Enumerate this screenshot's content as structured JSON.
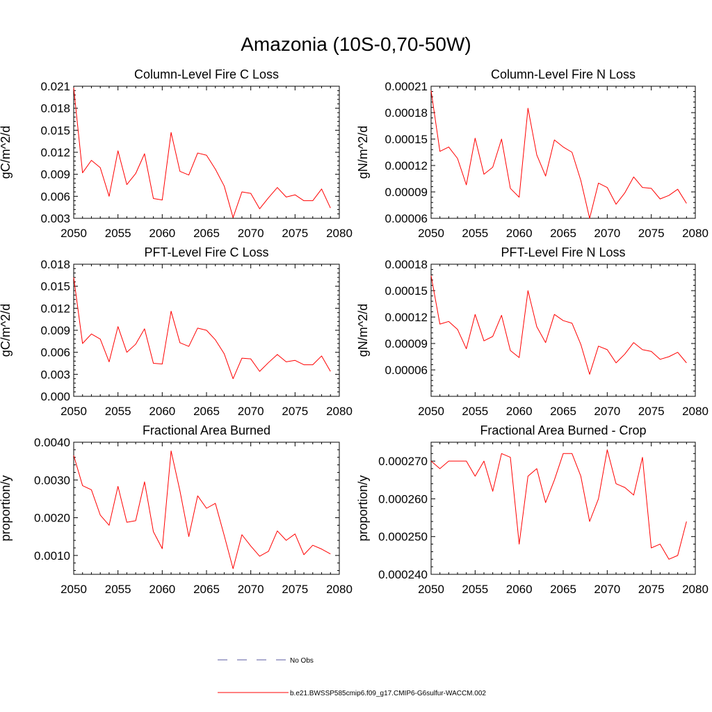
{
  "figure": {
    "title": "Amazonia (10S-0,70-50W)"
  },
  "legend": {
    "entries": [
      {
        "label": "No Obs",
        "color": "#5a5aa0",
        "style": "dashed"
      },
      {
        "label": "b.e21.BWSSP585cmip6.f09_g17.CMIP6-G6sulfur-WACCM.002",
        "color": "#ff0000",
        "style": "solid"
      }
    ]
  },
  "chart_data": [
    {
      "type": "line",
      "title": "Column-Level Fire C Loss",
      "ylabel": "gC/m^2/d",
      "xlim": [
        2050,
        2080
      ],
      "ylim": [
        0.003,
        0.021
      ],
      "xticks": [
        2050,
        2055,
        2060,
        2065,
        2070,
        2075,
        2080
      ],
      "yticks": [
        "0.003",
        "0.006",
        "0.009",
        "0.012",
        "0.015",
        "0.018",
        "0.021"
      ],
      "x": [
        2050,
        2051,
        2052,
        2053,
        2054,
        2055,
        2056,
        2057,
        2058,
        2059,
        2060,
        2061,
        2062,
        2063,
        2064,
        2065,
        2066,
        2067,
        2068,
        2069,
        2070,
        2071,
        2072,
        2073,
        2074,
        2075,
        2076,
        2077,
        2078,
        2079
      ],
      "series": [
        {
          "color": "#ff0000",
          "values": [
            0.0208,
            0.0092,
            0.0109,
            0.0099,
            0.006,
            0.0122,
            0.0076,
            0.0091,
            0.0118,
            0.0057,
            0.0055,
            0.0147,
            0.0094,
            0.0089,
            0.0119,
            0.0116,
            0.0097,
            0.0074,
            0.0031,
            0.0066,
            0.0064,
            0.0043,
            0.0058,
            0.0072,
            0.0059,
            0.0062,
            0.0054,
            0.0054,
            0.007,
            0.0044
          ]
        }
      ]
    },
    {
      "type": "line",
      "title": "Column-Level Fire N Loss",
      "ylabel": "gN/m^2/d",
      "xlim": [
        2050,
        2080
      ],
      "ylim": [
        6e-05,
        0.00021
      ],
      "xticks": [
        2050,
        2055,
        2060,
        2065,
        2070,
        2075,
        2080
      ],
      "yticks": [
        "0.00006",
        "0.00009",
        "0.00012",
        "0.00015",
        "0.00018",
        "0.00021"
      ],
      "x": [
        2050,
        2051,
        2052,
        2053,
        2054,
        2055,
        2056,
        2057,
        2058,
        2059,
        2060,
        2061,
        2062,
        2063,
        2064,
        2065,
        2066,
        2067,
        2068,
        2069,
        2070,
        2071,
        2072,
        2073,
        2074,
        2075,
        2076,
        2077,
        2078,
        2079
      ],
      "series": [
        {
          "color": "#ff0000",
          "values": [
            0.000205,
            0.000136,
            0.000141,
            0.000128,
            9.8e-05,
            0.000151,
            0.00011,
            0.000118,
            0.00015,
            9.4e-05,
            8.4e-05,
            0.000185,
            0.000132,
            0.000108,
            0.000149,
            0.000141,
            0.000135,
            0.000103,
            6e-05,
            0.0001,
            9.5e-05,
            7.6e-05,
            8.9e-05,
            0.000107,
            9.5e-05,
            9.4e-05,
            8.2e-05,
            8.6e-05,
            9.3e-05,
            7.7e-05
          ]
        }
      ]
    },
    {
      "type": "line",
      "title": "PFT-Level Fire C Loss",
      "ylabel": "gC/m^2/d",
      "xlim": [
        2050,
        2080
      ],
      "ylim": [
        0,
        0.018
      ],
      "xticks": [
        2050,
        2055,
        2060,
        2065,
        2070,
        2075,
        2080
      ],
      "yticks": [
        "0.000",
        "0.003",
        "0.006",
        "0.009",
        "0.012",
        "0.015",
        "0.018"
      ],
      "x": [
        2050,
        2051,
        2052,
        2053,
        2054,
        2055,
        2056,
        2057,
        2058,
        2059,
        2060,
        2061,
        2062,
        2063,
        2064,
        2065,
        2066,
        2067,
        2068,
        2069,
        2070,
        2071,
        2072,
        2073,
        2074,
        2075,
        2076,
        2077,
        2078,
        2079
      ],
      "series": [
        {
          "color": "#ff0000",
          "values": [
            0.0162,
            0.0072,
            0.0085,
            0.0078,
            0.0047,
            0.0095,
            0.006,
            0.0071,
            0.0092,
            0.0045,
            0.0044,
            0.0116,
            0.0073,
            0.0068,
            0.0093,
            0.009,
            0.0077,
            0.0058,
            0.0024,
            0.0052,
            0.0051,
            0.0034,
            0.0046,
            0.0057,
            0.0047,
            0.0049,
            0.0043,
            0.0043,
            0.0055,
            0.0034
          ]
        }
      ]
    },
    {
      "type": "line",
      "title": "PFT-Level Fire N Loss",
      "ylabel": "gN/m^2/d",
      "xlim": [
        2050,
        2080
      ],
      "ylim": [
        3e-05,
        0.00018
      ],
      "xticks": [
        2050,
        2055,
        2060,
        2065,
        2070,
        2075,
        2080
      ],
      "yticks": [
        "0.00006",
        "0.00009",
        "0.00012",
        "0.00015",
        "0.00018"
      ],
      "x": [
        2050,
        2051,
        2052,
        2053,
        2054,
        2055,
        2056,
        2057,
        2058,
        2059,
        2060,
        2061,
        2062,
        2063,
        2064,
        2065,
        2066,
        2067,
        2068,
        2069,
        2070,
        2071,
        2072,
        2073,
        2074,
        2075,
        2076,
        2077,
        2078,
        2079
      ],
      "series": [
        {
          "color": "#ff0000",
          "values": [
            0.000167,
            0.000112,
            0.000115,
            0.000106,
            8.4e-05,
            0.000123,
            9.3e-05,
            9.8e-05,
            0.000122,
            8.2e-05,
            7.4e-05,
            0.00015,
            0.000109,
            9.1e-05,
            0.000123,
            0.000116,
            0.000113,
            8.9e-05,
            5.5e-05,
            8.7e-05,
            8.3e-05,
            6.8e-05,
            7.8e-05,
            9.1e-05,
            8.3e-05,
            8.1e-05,
            7.2e-05,
            7.5e-05,
            8e-05,
            6.8e-05
          ]
        }
      ]
    },
    {
      "type": "line",
      "title": "Fractional Area Burned",
      "ylabel": "proportion/y",
      "xlim": [
        2050,
        2080
      ],
      "ylim": [
        0.0005,
        0.004
      ],
      "xticks": [
        2050,
        2055,
        2060,
        2065,
        2070,
        2075,
        2080
      ],
      "yticks": [
        "0.0010",
        "0.0020",
        "0.0030",
        "0.0040"
      ],
      "x": [
        2050,
        2051,
        2052,
        2053,
        2054,
        2055,
        2056,
        2057,
        2058,
        2059,
        2060,
        2061,
        2062,
        2063,
        2064,
        2065,
        2066,
        2067,
        2068,
        2069,
        2070,
        2071,
        2072,
        2073,
        2074,
        2075,
        2076,
        2077,
        2078,
        2079
      ],
      "series": [
        {
          "color": "#ff0000",
          "values": [
            0.00365,
            0.00285,
            0.00274,
            0.00207,
            0.0018,
            0.00283,
            0.00188,
            0.00192,
            0.00295,
            0.00163,
            0.00118,
            0.00377,
            0.00271,
            0.0015,
            0.00258,
            0.00225,
            0.00238,
            0.00153,
            0.00065,
            0.00155,
            0.00125,
            0.00098,
            0.00111,
            0.00165,
            0.0014,
            0.00157,
            0.00102,
            0.00127,
            0.00117,
            0.00104
          ]
        }
      ]
    },
    {
      "type": "line",
      "title": "Fractional Area Burned - Crop",
      "ylabel": "proportion/y",
      "xlim": [
        2050,
        2080
      ],
      "ylim": [
        0.00024,
        0.000275
      ],
      "xticks": [
        2050,
        2055,
        2060,
        2065,
        2070,
        2075,
        2080
      ],
      "yticks": [
        "0.000240",
        "0.000250",
        "0.000260",
        "0.000270"
      ],
      "x": [
        2050,
        2051,
        2052,
        2053,
        2054,
        2055,
        2056,
        2057,
        2058,
        2059,
        2060,
        2061,
        2062,
        2063,
        2064,
        2065,
        2066,
        2067,
        2068,
        2069,
        2070,
        2071,
        2072,
        2073,
        2074,
        2075,
        2076,
        2077,
        2078,
        2079
      ],
      "series": [
        {
          "color": "#ff0000",
          "values": [
            0.00027,
            0.000268,
            0.00027,
            0.00027,
            0.00027,
            0.000266,
            0.00027,
            0.000262,
            0.000272,
            0.000271,
            0.000248,
            0.000266,
            0.000268,
            0.000259,
            0.000265,
            0.000272,
            0.000272,
            0.000266,
            0.000254,
            0.00026,
            0.000273,
            0.000264,
            0.000263,
            0.000261,
            0.000271,
            0.000247,
            0.000248,
            0.000244,
            0.000245,
            0.000254
          ]
        }
      ]
    }
  ]
}
